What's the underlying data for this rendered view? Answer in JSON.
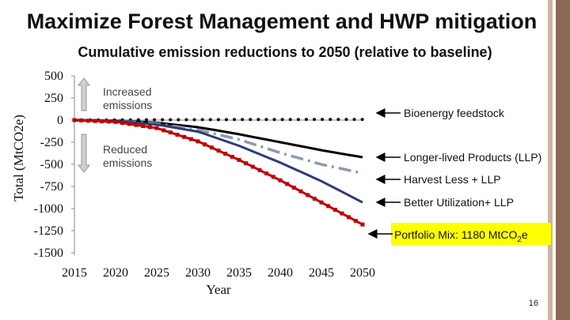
{
  "page": {
    "title": "Maximize Forest Management and HWP mitigation",
    "slide_number": "16"
  },
  "chart_data": {
    "type": "line",
    "title": "Cumulative emission reductions to 2050 (relative to baseline)",
    "xlabel": "Year",
    "ylabel": "Total (MtCO2e)",
    "x": [
      2015,
      2020,
      2025,
      2030,
      2035,
      2040,
      2045,
      2050
    ],
    "xlim": [
      2015,
      2050
    ],
    "ylim": [
      -1500,
      500
    ],
    "yticks": [
      500,
      250,
      0,
      -250,
      -500,
      -750,
      -1000,
      -1250,
      -1500
    ],
    "xticks": [
      2015,
      2020,
      2025,
      2030,
      2035,
      2040,
      2045,
      2050
    ],
    "annotations": {
      "increased": [
        "Increased",
        "emissions"
      ],
      "reduced": [
        "Reduced",
        "emissions"
      ]
    },
    "series": [
      {
        "name": "Bioenergy feedstock",
        "label": "Bioenergy feedstock",
        "color": "#111111",
        "style": "dotted",
        "values": [
          0,
          2,
          4,
          5,
          6,
          7,
          8,
          8
        ]
      },
      {
        "name": "Longer-lived Products (LLP)",
        "label": "Longer-lived Products (LLP)",
        "color": "#000000",
        "style": "solid",
        "values": [
          0,
          -5,
          -30,
          -80,
          -160,
          -250,
          -340,
          -420
        ]
      },
      {
        "name": "Harvest Less + LLP",
        "label": "Harvest Less + LLP",
        "color": "#8b9bb0",
        "style": "dashdot",
        "values": [
          0,
          -10,
          -40,
          -110,
          -220,
          -370,
          -500,
          -600
        ]
      },
      {
        "name": "Better Utilization+ LLP",
        "label": "Better Utilization+ LLP",
        "color": "#2e3a7a",
        "style": "solid",
        "values": [
          0,
          -10,
          -50,
          -130,
          -290,
          -480,
          -690,
          -930
        ]
      },
      {
        "name": "Portfolio Mix",
        "label": "Portfolio Mix: 1180 MtCO2e",
        "color": "#c00000",
        "style": "markers",
        "values": [
          0,
          -20,
          -90,
          -240,
          -450,
          -680,
          -930,
          -1180
        ]
      }
    ],
    "portfolio_label": {
      "prefix": "Portfolio Mix: 1180 MtCO",
      "sub": "2",
      "suffix": "e"
    }
  }
}
